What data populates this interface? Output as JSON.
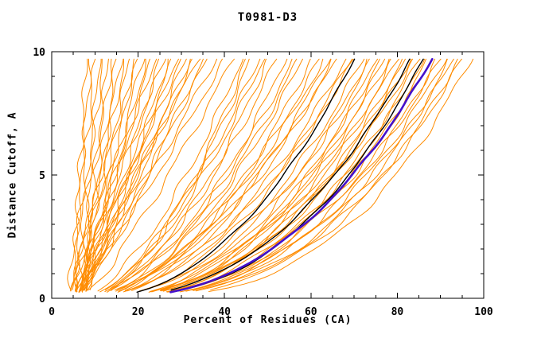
{
  "chart_data": {
    "type": "line",
    "title": "T0981-D3",
    "xlabel": "Percent of Residues (CA)",
    "ylabel": "Distance Cutoff, A",
    "xlim": [
      0,
      100
    ],
    "ylim": [
      0,
      10
    ],
    "xticks": [
      0,
      20,
      40,
      60,
      80,
      100
    ],
    "x_minor_step": 5,
    "yticks": [
      0,
      5,
      10
    ],
    "y_minor_step": 1,
    "y_start": 0.25,
    "y_end": 9.7,
    "grid": false,
    "legend_position": "none",
    "colors": {
      "prediction": "#ff8c00",
      "reference": "#000000",
      "highlight": "#4411cc",
      "axis": "#000000",
      "background": "#ffffff"
    },
    "curve_model": "x(y) = x0 + (x_top - x0) * (y / y_end)^k ; each curve encoded as [x0, x_top, k]",
    "series": [
      {
        "name": "predictions",
        "color_key": "prediction",
        "width": 1.0,
        "curves": [
          [
            5,
            8,
            1.0
          ],
          [
            4,
            9,
            0.9
          ],
          [
            5,
            10,
            1.1
          ],
          [
            6,
            11,
            0.95
          ],
          [
            5,
            12,
            1.05
          ],
          [
            6,
            13,
            0.85
          ],
          [
            5,
            14,
            1.0
          ],
          [
            6,
            15,
            0.9
          ],
          [
            7,
            16,
            1.1
          ],
          [
            5,
            17,
            0.95
          ],
          [
            6,
            18,
            1.0
          ],
          [
            7,
            19,
            0.9
          ],
          [
            5,
            20,
            1.05
          ],
          [
            6,
            21,
            0.95
          ],
          [
            7,
            22,
            1.0
          ],
          [
            5,
            23,
            0.9
          ],
          [
            6,
            24,
            1.1
          ],
          [
            7,
            25,
            0.95
          ],
          [
            5,
            26,
            1.0
          ],
          [
            6,
            27,
            0.85
          ],
          [
            7,
            28,
            1.05
          ],
          [
            6,
            29,
            0.95
          ],
          [
            5,
            30,
            1.0
          ],
          [
            6,
            31,
            0.9
          ],
          [
            7,
            32,
            1.0
          ],
          [
            6,
            33,
            0.95
          ],
          [
            5,
            34,
            1.05
          ],
          [
            6,
            35,
            0.9
          ],
          [
            7,
            36,
            1.0
          ],
          [
            6,
            38,
            0.95
          ],
          [
            5,
            40,
            0.9
          ],
          [
            7,
            42,
            0.85
          ],
          [
            6,
            44,
            0.62
          ],
          [
            7,
            46,
            0.58
          ],
          [
            6,
            48,
            0.6
          ],
          [
            7,
            50,
            0.55
          ],
          [
            8,
            52,
            0.6
          ],
          [
            6,
            54,
            0.52
          ],
          [
            7,
            56,
            0.58
          ],
          [
            8,
            58,
            0.55
          ],
          [
            6,
            60,
            0.5
          ],
          [
            7,
            62,
            0.55
          ],
          [
            8,
            64,
            0.52
          ],
          [
            7,
            65,
            0.5
          ],
          [
            6,
            66,
            0.55
          ],
          [
            7,
            68,
            0.5
          ],
          [
            8,
            70,
            0.52
          ],
          [
            9,
            69,
            0.48
          ],
          [
            8,
            63,
            0.55
          ],
          [
            9,
            57,
            0.58
          ],
          [
            8,
            49,
            0.62
          ],
          [
            9,
            45,
            0.6
          ],
          [
            7,
            72,
            0.45
          ],
          [
            8,
            73,
            0.42
          ],
          [
            7,
            74,
            0.45
          ],
          [
            8,
            75,
            0.4
          ],
          [
            9,
            76,
            0.44
          ],
          [
            7,
            77,
            0.4
          ],
          [
            8,
            78,
            0.43
          ],
          [
            9,
            79,
            0.4
          ],
          [
            7,
            80,
            0.42
          ],
          [
            8,
            81,
            0.38
          ],
          [
            9,
            82,
            0.42
          ],
          [
            8,
            83,
            0.4
          ],
          [
            7,
            84,
            0.42
          ],
          [
            8,
            85,
            0.38
          ],
          [
            9,
            86,
            0.4
          ],
          [
            8,
            87,
            0.37
          ],
          [
            9,
            88,
            0.4
          ],
          [
            8,
            89,
            0.36
          ],
          [
            9,
            90,
            0.4
          ],
          [
            8,
            91,
            0.37
          ],
          [
            9,
            92,
            0.35
          ],
          [
            8,
            93,
            0.38
          ],
          [
            9,
            94,
            0.34
          ],
          [
            10,
            95,
            0.37
          ],
          [
            9,
            97,
            0.33
          ]
        ]
      },
      {
        "name": "reference-models",
        "color_key": "reference",
        "width": 1.4,
        "curves": [
          [
            8,
            70,
            0.46
          ],
          [
            9,
            83,
            0.41
          ],
          [
            10,
            86,
            0.39
          ]
        ]
      },
      {
        "name": "best-model",
        "color_key": "highlight",
        "width": 2.6,
        "curves": [
          [
            9,
            88,
            0.4
          ]
        ]
      }
    ]
  }
}
